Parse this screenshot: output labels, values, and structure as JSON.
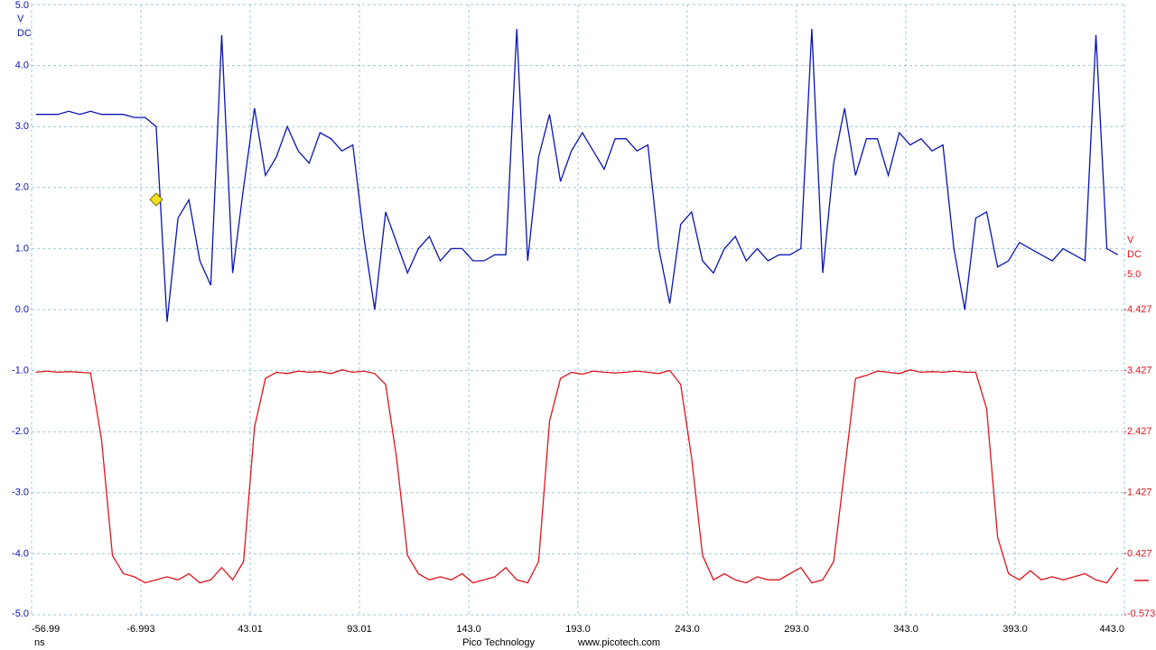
{
  "chart_data": {
    "type": "line",
    "y_unit": "V",
    "y_coupling": "DC",
    "y2_unit": "V",
    "y2_coupling": "DC",
    "x_unit": "ns",
    "footer": [
      "Pico Technology",
      "www.picotech.com"
    ],
    "grid": true,
    "xlim": [
      -56.99,
      443.0
    ],
    "xticks": [
      -56.99,
      -6.993,
      43.01,
      93.01,
      {
        "value": 143,
        "label": "143.0"
      },
      {
        "value": 193,
        "label": "193.0"
      },
      {
        "value": 243,
        "label": "243.0"
      },
      {
        "value": 293,
        "label": "293.0"
      },
      {
        "value": 343,
        "label": "343.0"
      },
      {
        "value": 393,
        "label": "393.0"
      },
      {
        "value": 443,
        "label": "443.0"
      }
    ],
    "ylim": [
      -5,
      5
    ],
    "yticks": [
      {
        "value": 5,
        "label": "5.0"
      },
      {
        "value": 4,
        "label": "4.0"
      },
      {
        "value": 3,
        "label": "3.0"
      },
      {
        "value": 2,
        "label": "2.0"
      },
      {
        "value": 1,
        "label": "1.0"
      },
      {
        "value": 0,
        "label": "0.0"
      },
      {
        "value": -1,
        "label": "-1.0"
      },
      {
        "value": -2,
        "label": "-2.0"
      },
      {
        "value": -3,
        "label": "-3.0"
      },
      {
        "value": -4,
        "label": "-4.0"
      },
      {
        "value": -5,
        "label": "-5.0"
      }
    ],
    "y2lim": [
      -0.573,
      9.427
    ],
    "y2ticks": [
      {
        "value": 5,
        "label": "5.0"
      },
      4.427,
      3.427,
      2.427,
      1.427,
      0.427,
      -0.573
    ],
    "x": [
      -55,
      -50,
      -45,
      -40,
      -35,
      -30,
      -25,
      -20,
      -15,
      -10,
      -5,
      0,
      5,
      10,
      15,
      20,
      25,
      30,
      35,
      40,
      45,
      50,
      55,
      60,
      65,
      70,
      75,
      80,
      85,
      90,
      95,
      100,
      105,
      110,
      115,
      120,
      125,
      130,
      135,
      140,
      145,
      150,
      155,
      160,
      165,
      170,
      175,
      180,
      185,
      190,
      195,
      200,
      205,
      210,
      215,
      220,
      225,
      230,
      235,
      240,
      245,
      250,
      255,
      260,
      265,
      270,
      275,
      280,
      285,
      290,
      295,
      300,
      305,
      310,
      315,
      320,
      325,
      330,
      335,
      340,
      345,
      350,
      355,
      360,
      365,
      370,
      375,
      380,
      385,
      390,
      395,
      400,
      405,
      410,
      415,
      420,
      425,
      430,
      435,
      440
    ],
    "series": [
      {
        "name": "A",
        "color": "#0a14b4",
        "values": [
          3.2,
          3.2,
          3.2,
          3.25,
          3.2,
          3.25,
          3.2,
          3.2,
          3.2,
          3.15,
          3.15,
          3.0,
          -0.2,
          1.5,
          1.8,
          0.8,
          0.4,
          4.5,
          0.6,
          2.0,
          3.3,
          2.2,
          2.5,
          3.0,
          2.6,
          2.4,
          2.9,
          2.8,
          2.6,
          2.7,
          1.2,
          0.0,
          1.6,
          1.1,
          0.6,
          1.0,
          1.2,
          0.8,
          1.0,
          1.0,
          0.8,
          0.8,
          0.9,
          0.9,
          4.6,
          0.8,
          2.5,
          3.2,
          2.1,
          2.6,
          2.9,
          2.6,
          2.3,
          2.8,
          2.8,
          2.6,
          2.7,
          1.0,
          0.1,
          1.4,
          1.6,
          0.8,
          0.6,
          1.0,
          1.2,
          0.8,
          1.0,
          0.8,
          0.9,
          0.9,
          1.0,
          4.6,
          0.6,
          2.4,
          3.3,
          2.2,
          2.8,
          2.8,
          2.2,
          2.9,
          2.7,
          2.8,
          2.6,
          2.7,
          1.0,
          0.0,
          1.5,
          1.6,
          0.7,
          0.8,
          1.1,
          1.0,
          0.9,
          0.8,
          1.0,
          0.9,
          0.8,
          4.5,
          1.0,
          0.9
        ]
      },
      {
        "name": "B",
        "color": "#e0141e",
        "axis": "y2",
        "values": [
          3.4,
          3.42,
          3.4,
          3.41,
          3.4,
          3.39,
          2.3,
          0.4,
          0.1,
          0.05,
          -0.05,
          0.0,
          0.05,
          0.0,
          0.1,
          -0.05,
          0.0,
          0.2,
          0.0,
          0.3,
          2.5,
          3.3,
          3.4,
          3.38,
          3.42,
          3.4,
          3.41,
          3.38,
          3.44,
          3.4,
          3.42,
          3.38,
          3.2,
          2.0,
          0.4,
          0.1,
          0.0,
          0.05,
          0.0,
          0.1,
          -0.05,
          0.0,
          0.05,
          0.2,
          0.0,
          -0.05,
          0.3,
          2.6,
          3.3,
          3.4,
          3.37,
          3.42,
          3.4,
          3.39,
          3.4,
          3.42,
          3.4,
          3.38,
          3.43,
          3.2,
          2.0,
          0.4,
          0.0,
          0.1,
          0.0,
          -0.05,
          0.05,
          0.0,
          0.0,
          0.1,
          0.2,
          -0.05,
          0.0,
          0.3,
          1.8,
          3.3,
          3.35,
          3.42,
          3.4,
          3.38,
          3.44,
          3.4,
          3.41,
          3.4,
          3.42,
          3.4,
          3.4,
          2.8,
          0.7,
          0.1,
          0.0,
          0.15,
          0.0,
          0.05,
          0.0,
          0.05,
          0.1,
          0.0,
          -0.05,
          0.2
        ]
      }
    ]
  }
}
